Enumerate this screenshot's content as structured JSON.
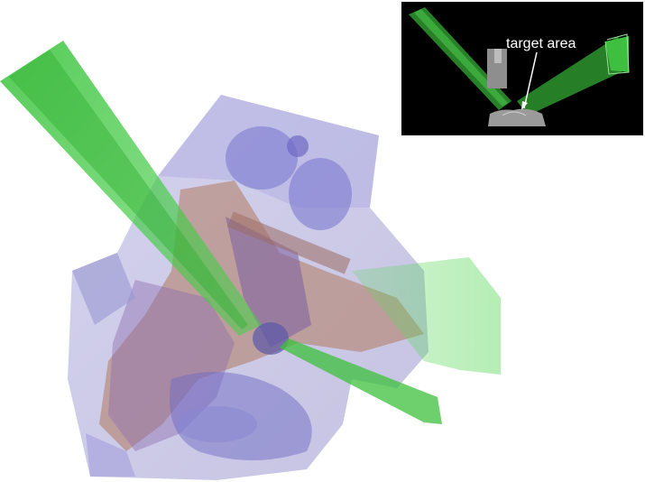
{
  "inset": {
    "label": "target area"
  },
  "colors": {
    "beam": "#3fbf3f",
    "volume_blue": "#8a88cc",
    "volume_brown": "#b07a5e",
    "inset_background": "#000000",
    "inset_part": "#9a9a9a"
  }
}
